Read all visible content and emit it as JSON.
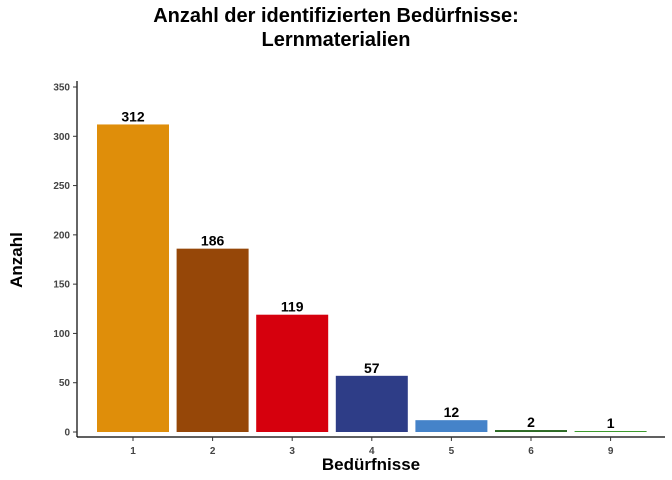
{
  "chart_data": {
    "type": "bar",
    "title_lines": [
      "Anzahl der identifizierten Bedürfnisse:",
      "Lernmaterialien"
    ],
    "xlabel": "Bedürfnisse",
    "ylabel": "Anzahl",
    "categories": [
      "1",
      "2",
      "3",
      "4",
      "5",
      "6",
      "9"
    ],
    "values": [
      312,
      186,
      119,
      57,
      12,
      2,
      1
    ],
    "data_labels": [
      "312",
      "186",
      "119",
      "57",
      "12",
      "2",
      "1"
    ],
    "colors": [
      "#DF8E0A",
      "#964708",
      "#D6000D",
      "#2E3D87",
      "#4583C9",
      "#2C6A25",
      "#3B9A2C"
    ],
    "ylim": [
      0,
      350
    ],
    "yticks": [
      0,
      50,
      100,
      150,
      200,
      250,
      300,
      350
    ],
    "ytick_labels": [
      "0",
      "50",
      "100",
      "150",
      "200",
      "250",
      "300",
      "350"
    ],
    "grid": false,
    "legend": "none"
  }
}
